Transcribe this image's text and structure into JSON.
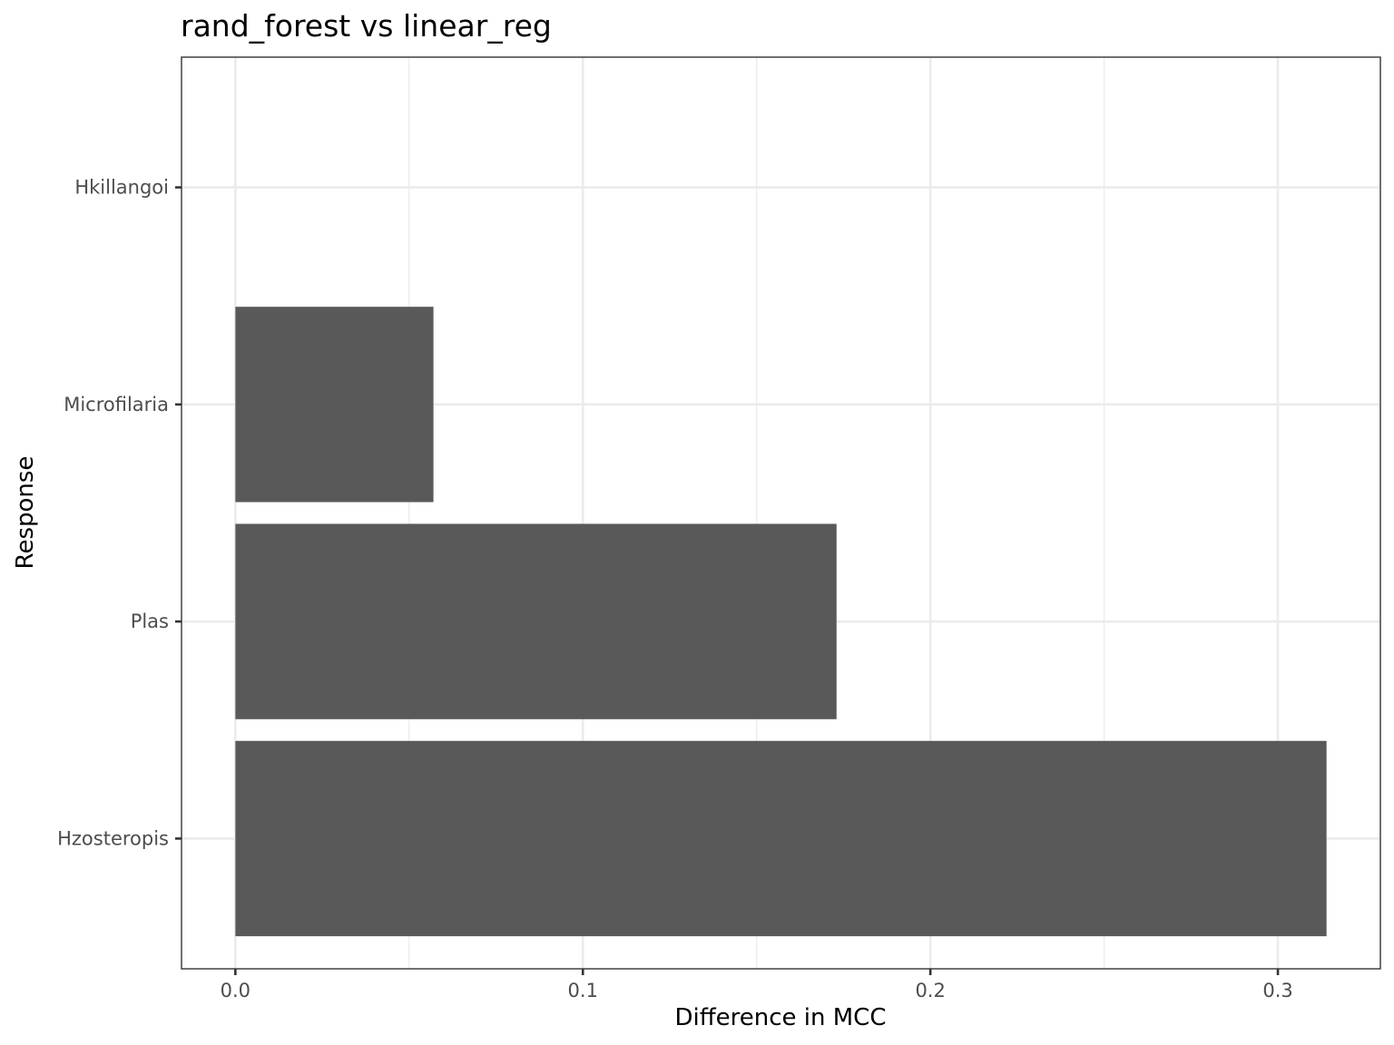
{
  "chart_data": {
    "type": "bar",
    "orientation": "horizontal",
    "title": "rand_forest  vs  linear_reg",
    "xlabel": "Difference in MCC",
    "ylabel": "Response",
    "categories": [
      "Hkillangoi",
      "Microfilaria",
      "Plas",
      "Hzosteropis"
    ],
    "values": [
      0,
      0.057,
      0.173,
      0.314
    ],
    "xlim": [
      -0.0155,
      0.3295
    ],
    "x_ticks": [
      0.0,
      0.1,
      0.2,
      0.3
    ],
    "x_tick_labels": [
      "0.0",
      "0.1",
      "0.2",
      "0.3"
    ],
    "grid": true,
    "bar_color": "#595959",
    "grid_color": "#ebebeb"
  }
}
